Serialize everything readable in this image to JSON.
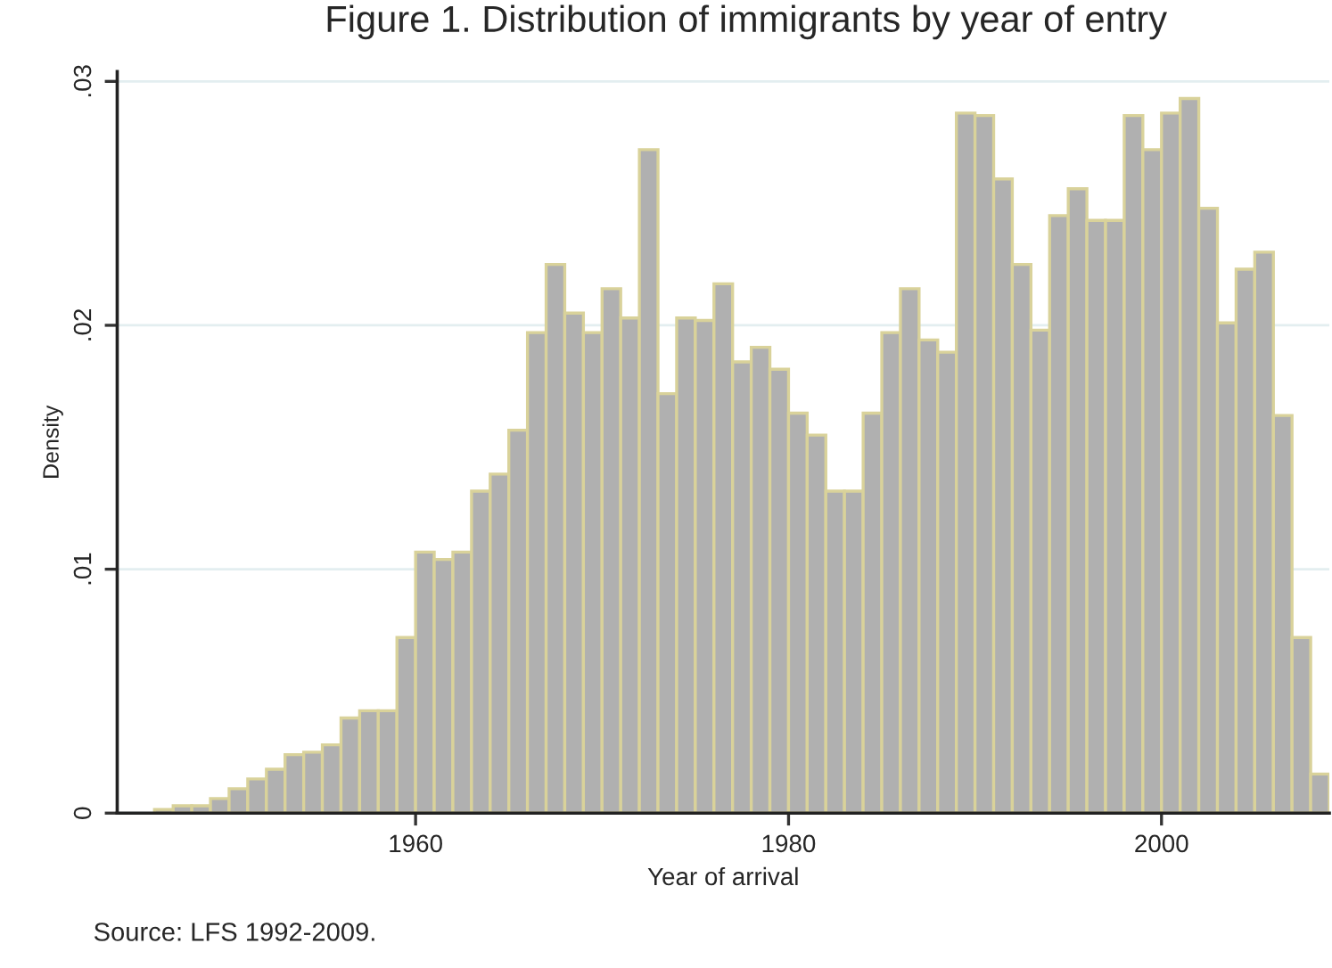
{
  "chart_data": {
    "type": "histogram",
    "title": "Figure 1. Distribution of immigrants by year of entry",
    "xlabel": "Year of arrival",
    "ylabel": "Density",
    "bins": [
      1946,
      1947,
      1948,
      1949,
      1950,
      1951,
      1952,
      1953,
      1954,
      1955,
      1956,
      1957,
      1958,
      1959,
      1960,
      1961,
      1962,
      1963,
      1964,
      1965,
      1966,
      1967,
      1968,
      1969,
      1970,
      1971,
      1972,
      1973,
      1974,
      1975,
      1976,
      1977,
      1978,
      1979,
      1980,
      1981,
      1982,
      1983,
      1984,
      1985,
      1986,
      1987,
      1988,
      1989,
      1990,
      1991,
      1992,
      1993,
      1994,
      1995,
      1996,
      1997,
      1998,
      1999,
      2000,
      2001,
      2002,
      2003,
      2004,
      2005,
      2006,
      2007,
      2008,
      2009
    ],
    "values": [
      0.00015,
      0.0003,
      0.0003,
      0.0006,
      0.001,
      0.0014,
      0.0018,
      0.0024,
      0.0025,
      0.0028,
      0.0039,
      0.0042,
      0.0042,
      0.0072,
      0.0107,
      0.0104,
      0.0107,
      0.0132,
      0.0139,
      0.0157,
      0.0197,
      0.0225,
      0.0205,
      0.0197,
      0.0215,
      0.0203,
      0.0272,
      0.0172,
      0.0203,
      0.0202,
      0.0217,
      0.0185,
      0.0191,
      0.0182,
      0.0164,
      0.0155,
      0.0132,
      0.0132,
      0.0164,
      0.0197,
      0.0215,
      0.0194,
      0.0189,
      0.0287,
      0.0286,
      0.026,
      0.0225,
      0.0198,
      0.0245,
      0.0256,
      0.0243,
      0.0243,
      0.0286,
      0.0272,
      0.0287,
      0.0293,
      0.0248,
      0.0201,
      0.0223,
      0.023,
      0.0163,
      0.0072,
      0.0016
    ],
    "color": "#b0b0b0",
    "xlim": [
      1944,
      2009
    ],
    "ylim": [
      0,
      0.0304
    ],
    "xticks": [
      1960,
      1980,
      2000
    ],
    "yticks": [
      {
        "value": 0,
        "label": "0"
      },
      {
        "value": 0.01,
        "label": ".01"
      },
      {
        "value": 0.02,
        "label": ".02"
      },
      {
        "value": 0.03,
        "label": ".03"
      }
    ],
    "grid": "y",
    "annotations": [
      "Source: LFS 1992-2009."
    ]
  }
}
